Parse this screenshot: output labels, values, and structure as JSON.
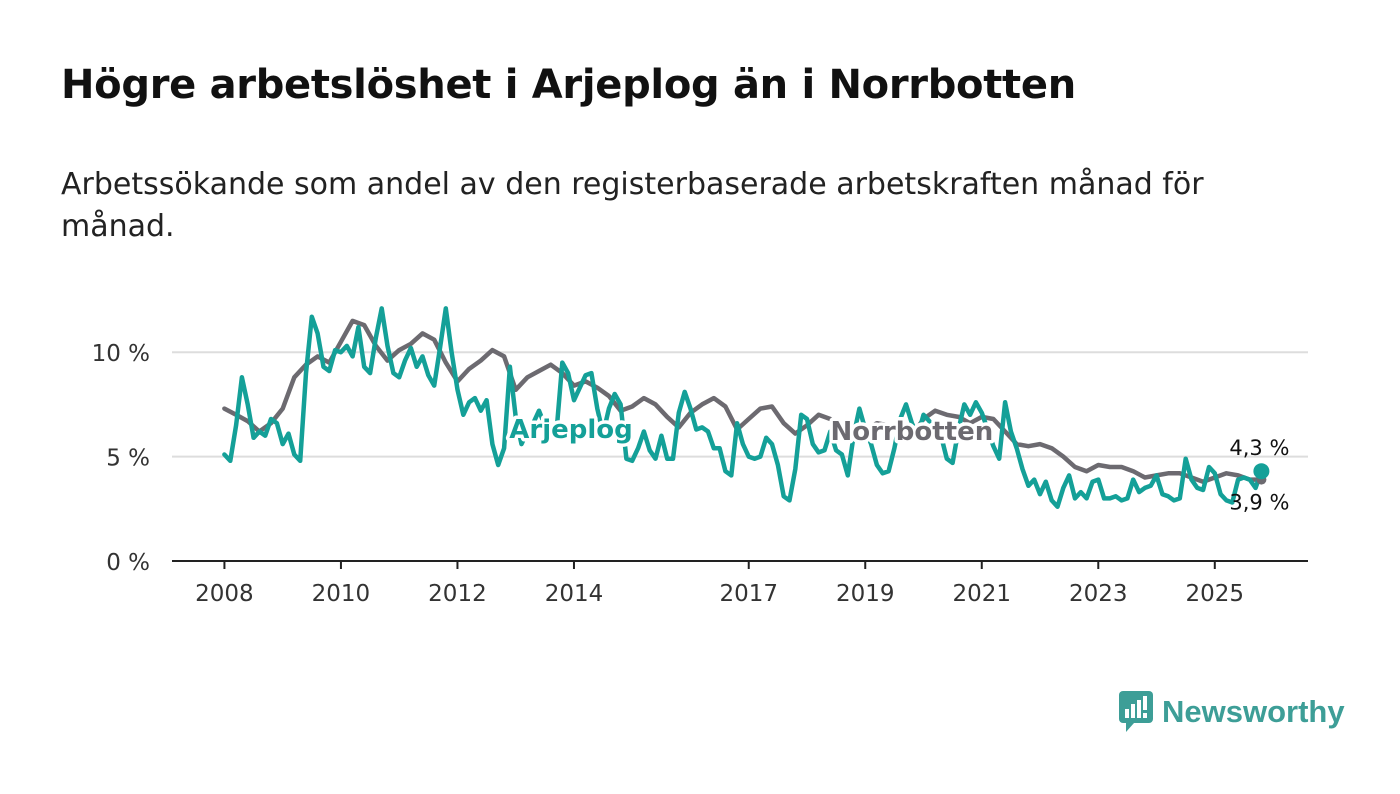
{
  "title": "Högre arbetslöshet i Arjeplog än i Norrbotten",
  "subtitle": "Arbetssökande som andel av den registerbaserade arbetskraften månad för månad.",
  "brand": {
    "name": "Newsworthy"
  },
  "colors": {
    "arjeplog": "#14a098",
    "norrbotten": "#6c6a70",
    "grid": "#dddddd",
    "axis": "#222222",
    "brand": "#3d9e97"
  },
  "chart_data": {
    "type": "line",
    "title": "Högre arbetslöshet i Arjeplog än i Norrbotten",
    "xlabel": "",
    "ylabel": "",
    "ylim": [
      0,
      12.5
    ],
    "xlim": [
      2007.1,
      2026.6
    ],
    "y_ticks": [
      0,
      5,
      10
    ],
    "y_tick_labels": [
      "0 %",
      "5 %",
      "10 %"
    ],
    "x_ticks": [
      2008,
      2010,
      2012,
      2014,
      2017,
      2019,
      2021,
      2023,
      2025
    ],
    "x_tick_labels": [
      "2008",
      "2010",
      "2012",
      "2014",
      "2017",
      "2019",
      "2021",
      "2023",
      "2025"
    ],
    "grid": true,
    "series": [
      {
        "name": "Norrbotten",
        "label": "Norrbotten",
        "end_label": "3,9 %",
        "points": [
          [
            2008.0,
            7.3
          ],
          [
            2008.2,
            7.0
          ],
          [
            2008.4,
            6.7
          ],
          [
            2008.6,
            6.2
          ],
          [
            2008.8,
            6.6
          ],
          [
            2009.0,
            7.3
          ],
          [
            2009.2,
            8.8
          ],
          [
            2009.4,
            9.4
          ],
          [
            2009.6,
            9.8
          ],
          [
            2009.8,
            9.5
          ],
          [
            2010.0,
            10.5
          ],
          [
            2010.2,
            11.5
          ],
          [
            2010.4,
            11.3
          ],
          [
            2010.6,
            10.3
          ],
          [
            2010.8,
            9.6
          ],
          [
            2011.0,
            10.1
          ],
          [
            2011.2,
            10.4
          ],
          [
            2011.4,
            10.9
          ],
          [
            2011.6,
            10.6
          ],
          [
            2011.8,
            9.5
          ],
          [
            2012.0,
            8.6
          ],
          [
            2012.2,
            9.2
          ],
          [
            2012.4,
            9.6
          ],
          [
            2012.6,
            10.1
          ],
          [
            2012.8,
            9.8
          ],
          [
            2013.0,
            8.2
          ],
          [
            2013.2,
            8.8
          ],
          [
            2013.4,
            9.1
          ],
          [
            2013.6,
            9.4
          ],
          [
            2013.8,
            9.0
          ],
          [
            2014.0,
            8.4
          ],
          [
            2014.2,
            8.6
          ],
          [
            2014.4,
            8.3
          ],
          [
            2014.6,
            7.9
          ],
          [
            2014.8,
            7.2
          ],
          [
            2015.0,
            7.4
          ],
          [
            2015.2,
            7.8
          ],
          [
            2015.4,
            7.5
          ],
          [
            2015.6,
            6.9
          ],
          [
            2015.8,
            6.4
          ],
          [
            2016.0,
            7.1
          ],
          [
            2016.2,
            7.5
          ],
          [
            2016.4,
            7.8
          ],
          [
            2016.6,
            7.4
          ],
          [
            2016.8,
            6.3
          ],
          [
            2017.0,
            6.8
          ],
          [
            2017.2,
            7.3
          ],
          [
            2017.4,
            7.4
          ],
          [
            2017.6,
            6.6
          ],
          [
            2017.8,
            6.1
          ],
          [
            2018.0,
            6.5
          ],
          [
            2018.2,
            7.0
          ],
          [
            2018.4,
            6.8
          ],
          [
            2018.6,
            6.3
          ],
          [
            2018.8,
            5.9
          ],
          [
            2019.0,
            6.3
          ],
          [
            2019.2,
            6.6
          ],
          [
            2019.4,
            6.5
          ],
          [
            2019.6,
            6.2
          ],
          [
            2019.8,
            6.0
          ],
          [
            2020.0,
            6.8
          ],
          [
            2020.2,
            7.2
          ],
          [
            2020.4,
            7.0
          ],
          [
            2020.6,
            6.9
          ],
          [
            2020.8,
            6.6
          ],
          [
            2021.0,
            6.9
          ],
          [
            2021.2,
            6.8
          ],
          [
            2021.4,
            6.2
          ],
          [
            2021.6,
            5.6
          ],
          [
            2021.8,
            5.5
          ],
          [
            2022.0,
            5.6
          ],
          [
            2022.2,
            5.4
          ],
          [
            2022.4,
            5.0
          ],
          [
            2022.6,
            4.5
          ],
          [
            2022.8,
            4.3
          ],
          [
            2023.0,
            4.6
          ],
          [
            2023.2,
            4.5
          ],
          [
            2023.4,
            4.5
          ],
          [
            2023.6,
            4.3
          ],
          [
            2023.8,
            4.0
          ],
          [
            2024.0,
            4.1
          ],
          [
            2024.2,
            4.2
          ],
          [
            2024.4,
            4.2
          ],
          [
            2024.6,
            4.0
          ],
          [
            2024.8,
            3.8
          ],
          [
            2025.0,
            4.0
          ],
          [
            2025.2,
            4.2
          ],
          [
            2025.4,
            4.1
          ],
          [
            2025.6,
            3.9
          ],
          [
            2025.8,
            3.9
          ]
        ]
      },
      {
        "name": "Arjeplog",
        "label": "Arjeplog",
        "end_label": "4,3 %",
        "points": [
          [
            2008.0,
            5.1
          ],
          [
            2008.1,
            4.8
          ],
          [
            2008.2,
            6.5
          ],
          [
            2008.3,
            8.8
          ],
          [
            2008.4,
            7.5
          ],
          [
            2008.5,
            5.9
          ],
          [
            2008.6,
            6.2
          ],
          [
            2008.7,
            6.0
          ],
          [
            2008.8,
            6.8
          ],
          [
            2008.9,
            6.6
          ],
          [
            2009.0,
            5.6
          ],
          [
            2009.1,
            6.1
          ],
          [
            2009.2,
            5.1
          ],
          [
            2009.3,
            4.8
          ],
          [
            2009.4,
            9.0
          ],
          [
            2009.5,
            11.7
          ],
          [
            2009.6,
            10.9
          ],
          [
            2009.7,
            9.3
          ],
          [
            2009.8,
            9.1
          ],
          [
            2009.9,
            10.1
          ],
          [
            2010.0,
            10.0
          ],
          [
            2010.1,
            10.3
          ],
          [
            2010.2,
            9.8
          ],
          [
            2010.3,
            11.2
          ],
          [
            2010.4,
            9.3
          ],
          [
            2010.5,
            9.0
          ],
          [
            2010.6,
            10.7
          ],
          [
            2010.7,
            12.1
          ],
          [
            2010.8,
            10.3
          ],
          [
            2010.9,
            9.0
          ],
          [
            2011.0,
            8.8
          ],
          [
            2011.1,
            9.6
          ],
          [
            2011.2,
            10.2
          ],
          [
            2011.3,
            9.3
          ],
          [
            2011.4,
            9.8
          ],
          [
            2011.5,
            8.9
          ],
          [
            2011.6,
            8.4
          ],
          [
            2011.7,
            10.2
          ],
          [
            2011.8,
            12.1
          ],
          [
            2011.9,
            10.0
          ],
          [
            2012.0,
            8.2
          ],
          [
            2012.1,
            7.0
          ],
          [
            2012.2,
            7.6
          ],
          [
            2012.3,
            7.8
          ],
          [
            2012.4,
            7.2
          ],
          [
            2012.5,
            7.7
          ],
          [
            2012.6,
            5.6
          ],
          [
            2012.7,
            4.6
          ],
          [
            2012.8,
            5.4
          ],
          [
            2012.9,
            9.3
          ],
          [
            2013.0,
            6.9
          ],
          [
            2013.1,
            5.6
          ],
          [
            2013.2,
            6.2
          ],
          [
            2013.3,
            6.6
          ],
          [
            2013.4,
            7.2
          ],
          [
            2013.5,
            6.5
          ],
          [
            2013.6,
            6.1
          ],
          [
            2013.7,
            6.2
          ],
          [
            2013.8,
            9.5
          ],
          [
            2013.9,
            9.0
          ],
          [
            2014.0,
            7.7
          ],
          [
            2014.1,
            8.3
          ],
          [
            2014.2,
            8.9
          ],
          [
            2014.3,
            9.0
          ],
          [
            2014.4,
            7.3
          ],
          [
            2014.5,
            6.1
          ],
          [
            2014.6,
            7.3
          ],
          [
            2014.7,
            8.0
          ],
          [
            2014.8,
            7.5
          ],
          [
            2014.9,
            4.9
          ],
          [
            2015.0,
            4.8
          ],
          [
            2015.1,
            5.4
          ],
          [
            2015.2,
            6.2
          ],
          [
            2015.3,
            5.3
          ],
          [
            2015.4,
            4.9
          ],
          [
            2015.5,
            6.0
          ],
          [
            2015.6,
            4.9
          ],
          [
            2015.7,
            4.9
          ],
          [
            2015.8,
            7.1
          ],
          [
            2015.9,
            8.1
          ],
          [
            2016.0,
            7.3
          ],
          [
            2016.1,
            6.3
          ],
          [
            2016.2,
            6.4
          ],
          [
            2016.3,
            6.2
          ],
          [
            2016.4,
            5.4
          ],
          [
            2016.5,
            5.4
          ],
          [
            2016.6,
            4.3
          ],
          [
            2016.7,
            4.1
          ],
          [
            2016.8,
            6.6
          ],
          [
            2016.9,
            5.6
          ],
          [
            2017.0,
            5.0
          ],
          [
            2017.1,
            4.9
          ],
          [
            2017.2,
            5.0
          ],
          [
            2017.3,
            5.9
          ],
          [
            2017.4,
            5.6
          ],
          [
            2017.5,
            4.6
          ],
          [
            2017.6,
            3.1
          ],
          [
            2017.7,
            2.9
          ],
          [
            2017.8,
            4.4
          ],
          [
            2017.9,
            7.0
          ],
          [
            2018.0,
            6.8
          ],
          [
            2018.1,
            5.6
          ],
          [
            2018.2,
            5.2
          ],
          [
            2018.3,
            5.3
          ],
          [
            2018.4,
            6.2
          ],
          [
            2018.5,
            5.3
          ],
          [
            2018.6,
            5.1
          ],
          [
            2018.7,
            4.1
          ],
          [
            2018.8,
            6.0
          ],
          [
            2018.9,
            7.3
          ],
          [
            2019.0,
            6.3
          ],
          [
            2019.1,
            5.6
          ],
          [
            2019.2,
            4.6
          ],
          [
            2019.3,
            4.2
          ],
          [
            2019.4,
            4.3
          ],
          [
            2019.5,
            5.4
          ],
          [
            2019.6,
            6.8
          ],
          [
            2019.7,
            7.5
          ],
          [
            2019.8,
            6.6
          ],
          [
            2019.9,
            6.0
          ],
          [
            2020.0,
            7.0
          ],
          [
            2020.1,
            6.7
          ],
          [
            2020.2,
            6.0
          ],
          [
            2020.3,
            6.0
          ],
          [
            2020.4,
            4.9
          ],
          [
            2020.5,
            4.7
          ],
          [
            2020.6,
            6.3
          ],
          [
            2020.7,
            7.5
          ],
          [
            2020.8,
            7.0
          ],
          [
            2020.9,
            7.6
          ],
          [
            2021.0,
            7.1
          ],
          [
            2021.1,
            6.3
          ],
          [
            2021.2,
            5.5
          ],
          [
            2021.3,
            4.9
          ],
          [
            2021.4,
            7.6
          ],
          [
            2021.5,
            6.2
          ],
          [
            2021.6,
            5.4
          ],
          [
            2021.7,
            4.4
          ],
          [
            2021.8,
            3.6
          ],
          [
            2021.9,
            3.9
          ],
          [
            2022.0,
            3.2
          ],
          [
            2022.1,
            3.8
          ],
          [
            2022.2,
            2.9
          ],
          [
            2022.3,
            2.6
          ],
          [
            2022.4,
            3.5
          ],
          [
            2022.5,
            4.1
          ],
          [
            2022.6,
            3.0
          ],
          [
            2022.7,
            3.3
          ],
          [
            2022.8,
            3.0
          ],
          [
            2022.9,
            3.8
          ],
          [
            2023.0,
            3.9
          ],
          [
            2023.1,
            3.0
          ],
          [
            2023.2,
            3.0
          ],
          [
            2023.3,
            3.1
          ],
          [
            2023.4,
            2.9
          ],
          [
            2023.5,
            3.0
          ],
          [
            2023.6,
            3.9
          ],
          [
            2023.7,
            3.3
          ],
          [
            2023.8,
            3.5
          ],
          [
            2023.9,
            3.6
          ],
          [
            2024.0,
            4.1
          ],
          [
            2024.1,
            3.2
          ],
          [
            2024.2,
            3.1
          ],
          [
            2024.3,
            2.9
          ],
          [
            2024.4,
            3.0
          ],
          [
            2024.5,
            4.9
          ],
          [
            2024.6,
            3.9
          ],
          [
            2024.7,
            3.5
          ],
          [
            2024.8,
            3.4
          ],
          [
            2024.9,
            4.5
          ],
          [
            2025.0,
            4.2
          ],
          [
            2025.1,
            3.2
          ],
          [
            2025.2,
            2.9
          ],
          [
            2025.3,
            2.8
          ],
          [
            2025.4,
            3.9
          ],
          [
            2025.5,
            4.0
          ],
          [
            2025.6,
            3.9
          ],
          [
            2025.7,
            3.5
          ],
          [
            2025.8,
            4.3
          ]
        ]
      }
    ]
  }
}
